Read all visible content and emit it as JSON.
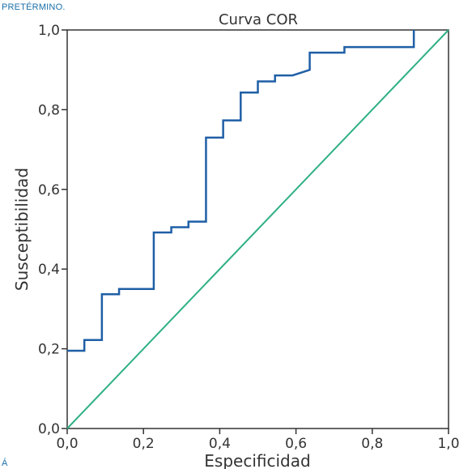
{
  "caption_top": "PRETÉRMINO.",
  "caption_bottom": "Á",
  "chart_data": {
    "type": "line",
    "title": "Curva COR",
    "xlabel": "Especificidad",
    "ylabel": "Susceptibilidad",
    "xlim": [
      0,
      1
    ],
    "ylim": [
      0,
      1
    ],
    "x_ticks": [
      "0,0",
      "0,2",
      "0,4",
      "0,6",
      "0,8",
      "1,0"
    ],
    "y_ticks": [
      "0,0",
      "0,2",
      "0,4",
      "0,6",
      "0,8",
      "1,0"
    ],
    "grid": false,
    "series": [
      {
        "color": "#1f5fa6",
        "step": true,
        "points": [
          [
            0.0,
            0.195
          ],
          [
            0.045,
            0.195
          ],
          [
            0.045,
            0.222
          ],
          [
            0.091,
            0.222
          ],
          [
            0.091,
            0.337
          ],
          [
            0.136,
            0.337
          ],
          [
            0.136,
            0.35
          ],
          [
            0.227,
            0.35
          ],
          [
            0.227,
            0.492
          ],
          [
            0.273,
            0.492
          ],
          [
            0.273,
            0.505
          ],
          [
            0.318,
            0.505
          ],
          [
            0.318,
            0.519
          ],
          [
            0.364,
            0.519
          ],
          [
            0.364,
            0.73
          ],
          [
            0.409,
            0.73
          ],
          [
            0.409,
            0.773
          ],
          [
            0.455,
            0.773
          ],
          [
            0.455,
            0.843
          ],
          [
            0.5,
            0.843
          ],
          [
            0.5,
            0.871
          ],
          [
            0.545,
            0.871
          ],
          [
            0.545,
            0.886
          ],
          [
            0.591,
            0.886
          ],
          [
            0.591,
            0.886
          ],
          [
            0.636,
            0.9
          ],
          [
            0.636,
            0.943
          ],
          [
            0.727,
            0.943
          ],
          [
            0.727,
            0.957
          ],
          [
            0.909,
            0.957
          ],
          [
            0.909,
            1.0
          ]
        ]
      },
      {
        "color": "#2fb083",
        "step": false,
        "points": [
          [
            0,
            0
          ],
          [
            1,
            1
          ]
        ]
      }
    ]
  }
}
